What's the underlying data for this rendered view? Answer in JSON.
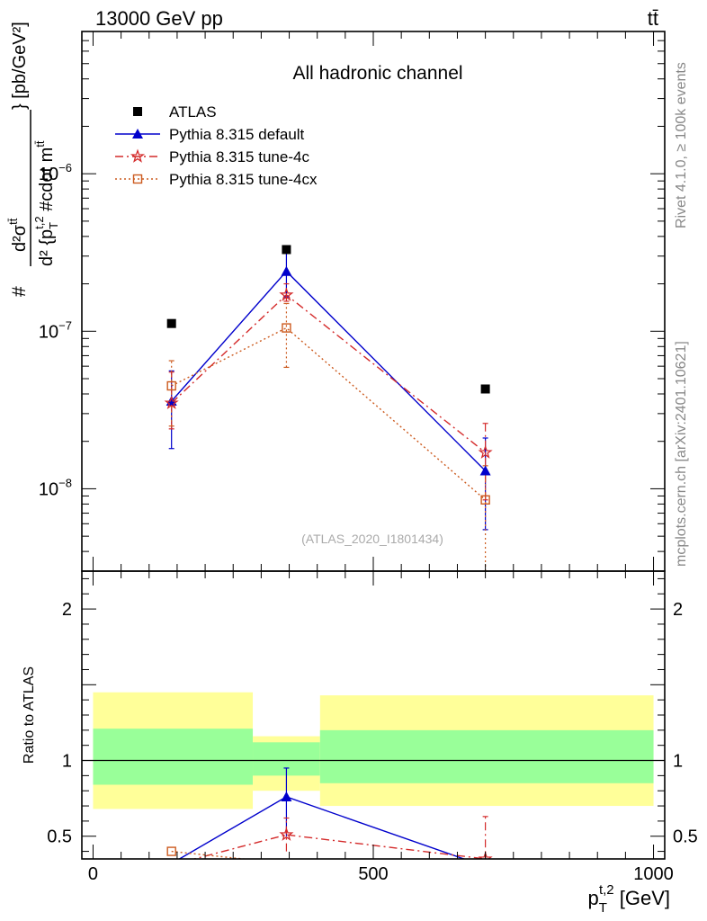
{
  "header": {
    "left": "13000 GeV pp",
    "right": "tt̄"
  },
  "side_labels": {
    "rivet": "Rivet 4.1.0, ≥ 100k events",
    "mcplots": "mcplots.cern.ch [arXiv:2401.10621]"
  },
  "chart_data": [
    {
      "type": "scatter",
      "panel": "main",
      "title": "All hadronic channel",
      "ylabel": "# d²σ^{tt̄} / d² {p_T^{t,2} #cdot m^{tt̄}} [pb/GeV²]",
      "ylabel_parts": {
        "num": "d²σ",
        "num_sup": "tt̄",
        "hash": "#",
        "den": "d² {p",
        "den_sub": "T",
        "den_sup": "t,2",
        "den_tail": " #cdot m",
        "den_tail_sup": "tt̄",
        "unit": "} [pb/GeV²]"
      },
      "yscale": "log",
      "ylim": [
        3e-09,
        8e-06
      ],
      "xlim": [
        -20,
        1020
      ],
      "yticks": [
        {
          "value": 1e-06,
          "base": "10",
          "exp": "−6"
        },
        {
          "value": 1e-07,
          "base": "10",
          "exp": "−7"
        },
        {
          "value": 1e-08,
          "base": "10",
          "exp": "−8"
        }
      ],
      "watermark": "(ATLAS_2020_I1801434)",
      "legend_position": "top-left",
      "series": [
        {
          "name": "ATLAS",
          "marker": "square-filled",
          "color": "#000000",
          "line": "none",
          "x": [
            140,
            345,
            700
          ],
          "y": [
            1.12e-07,
            3.3e-07,
            4.3e-08
          ]
        },
        {
          "name": "Pythia 8.315 default",
          "marker": "triangle-filled",
          "color": "#0000cc",
          "line": "solid",
          "x": [
            140,
            345,
            700
          ],
          "y": [
            3.6e-08,
            2.4e-07,
            1.3e-08
          ],
          "err_low": [
            1.8e-08,
            1.65e-07,
            5.5e-09
          ],
          "err_high": [
            5.6e-08,
            3.2e-07,
            2.1e-08
          ]
        },
        {
          "name": "Pythia 8.315 tune-4c",
          "marker": "star",
          "color": "#d42a2a",
          "line": "dashdot",
          "x": [
            140,
            345,
            700
          ],
          "y": [
            3.5e-08,
            1.7e-07,
            1.7e-08
          ],
          "err_low": [
            2.4e-08,
            1.55e-07,
            8.5e-09
          ],
          "err_high": [
            5.5e-08,
            2e-07,
            2.6e-08
          ]
        },
        {
          "name": "Pythia 8.315 tune-4cx",
          "marker": "square-open",
          "color": "#cc5a1e",
          "line": "dotted",
          "x": [
            140,
            345,
            700
          ],
          "y": [
            4.5e-08,
            1.05e-07,
            8.5e-09
          ],
          "err_low": [
            2.5e-08,
            5.9e-08,
            3e-09
          ],
          "err_high": [
            6.5e-08,
            1.5e-07,
            1.4e-08
          ]
        }
      ]
    },
    {
      "type": "line",
      "panel": "ratio",
      "ylabel": "Ratio to ATLAS",
      "xlabel": "p_T^{t,2} [GeV]",
      "xlabel_parts": {
        "main": "p",
        "sub": "T",
        "sup": "t,2",
        "unit": " [GeV]"
      },
      "ylim": [
        0.35,
        2.25
      ],
      "xlim": [
        -20,
        1020
      ],
      "xticks": [
        {
          "value": 0,
          "label": "0"
        },
        {
          "value": 500,
          "label": "500"
        },
        {
          "value": 1000,
          "label": "1000"
        }
      ],
      "yticks": [
        {
          "value": 0.5,
          "label": "0.5"
        },
        {
          "value": 1,
          "label": "1"
        },
        {
          "value": 2,
          "label": "2"
        }
      ],
      "bins": [
        {
          "x0": 0,
          "x1": 285,
          "yellow": [
            0.68,
            1.45
          ],
          "green": [
            0.84,
            1.21
          ]
        },
        {
          "x0": 285,
          "x1": 405,
          "yellow": [
            0.8,
            1.16
          ],
          "green": [
            0.9,
            1.12
          ]
        },
        {
          "x0": 405,
          "x1": 1000,
          "yellow": [
            0.7,
            1.43
          ],
          "green": [
            0.85,
            1.2
          ]
        }
      ],
      "series": [
        {
          "name": "Pythia 8.315 default",
          "color": "#0000cc",
          "line": "solid",
          "marker": "triangle-filled",
          "x": [
            140,
            345,
            700
          ],
          "y": [
            0.32,
            0.76,
            0.3
          ],
          "err_low": [
            null,
            0.5,
            null
          ],
          "err_high": [
            null,
            0.95,
            null
          ]
        },
        {
          "name": "Pythia 8.315 tune-4c",
          "color": "#d42a2a",
          "line": "dashdot",
          "marker": "star",
          "x": [
            140,
            345,
            700
          ],
          "y": [
            0.31,
            0.51,
            0.35
          ],
          "err_low": [
            null,
            0.4,
            0.2
          ],
          "err_high": [
            null,
            0.62,
            0.63
          ]
        },
        {
          "name": "Pythia 8.315 tune-4cx",
          "color": "#cc5a1e",
          "line": "dotted",
          "marker": "square-open",
          "x": [
            140,
            345,
            700
          ],
          "y": [
            0.4,
            0.32,
            0.2
          ],
          "err_low": [
            null,
            null,
            null
          ],
          "err_high": [
            null,
            null,
            null
          ]
        }
      ]
    }
  ]
}
